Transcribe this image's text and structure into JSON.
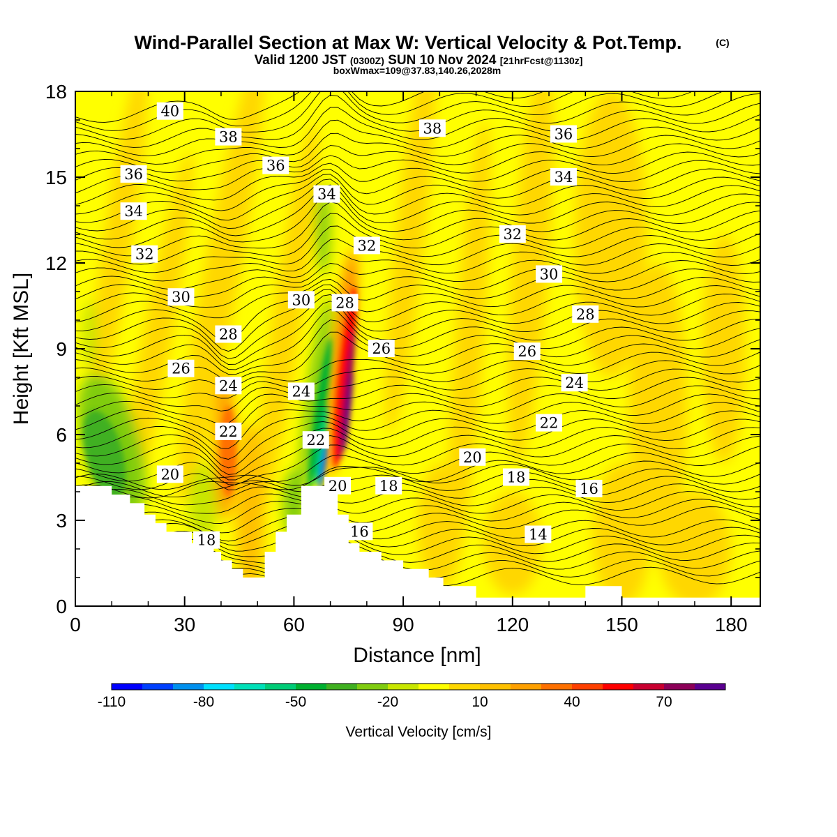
{
  "title": "Wind-Parallel Section at Max W: Vertical Velocity & Pot.Temp.",
  "copyright": "(C)",
  "valid_prefix": "Valid 1200 JST",
  "valid_z": "(0300Z)",
  "valid_date": "SUN 10 Nov 2024",
  "valid_fcst": "[21hrFcst@1130z]",
  "box_info": "boxWmax=109@37.83,140.26,2028m",
  "colorbar": {
    "label": "Vertical Velocity [cm/s]",
    "colors": [
      "#0000ff",
      "#0040ff",
      "#0090ee",
      "#00e0ff",
      "#00e0b8",
      "#00cc77",
      "#00b030",
      "#40b020",
      "#80cc10",
      "#c8e600",
      "#ffff00",
      "#ffd700",
      "#ffc000",
      "#ffa000",
      "#ff7000",
      "#ff4000",
      "#ff0000",
      "#c80030",
      "#8c0058",
      "#5a0090"
    ],
    "tick_labels": [
      "-110",
      "-80",
      "-50",
      "-20",
      "10",
      "40",
      "70"
    ]
  },
  "chart_data": {
    "type": "heatmap",
    "title": "Wind-Parallel Section at Max W: Vertical Velocity & Pot.Temp.",
    "xlabel": "Distance [nm]",
    "ylabel": "Height [Kft MSL]",
    "xlim": [
      0,
      188
    ],
    "ylim": [
      0,
      18
    ],
    "xticks": [
      "0",
      "30",
      "60",
      "90",
      "120",
      "150",
      "180"
    ],
    "yticks": [
      "0",
      "3",
      "6",
      "9",
      "12",
      "15",
      "18"
    ],
    "shaded_field": "Vertical Velocity [cm/s]",
    "contour_field": "Potential temperature",
    "contour_labels": [
      {
        "t": "40",
        "x": 26,
        "y": 17.3
      },
      {
        "t": "38",
        "x": 42,
        "y": 16.4
      },
      {
        "t": "38",
        "x": 98,
        "y": 16.7
      },
      {
        "t": "36",
        "x": 16,
        "y": 15.1
      },
      {
        "t": "36",
        "x": 55,
        "y": 15.4
      },
      {
        "t": "36",
        "x": 134,
        "y": 16.5
      },
      {
        "t": "34",
        "x": 16,
        "y": 13.8
      },
      {
        "t": "34",
        "x": 69,
        "y": 14.4
      },
      {
        "t": "34",
        "x": 134,
        "y": 15.0
      },
      {
        "t": "32",
        "x": 19,
        "y": 12.3
      },
      {
        "t": "32",
        "x": 80,
        "y": 12.6
      },
      {
        "t": "32",
        "x": 120,
        "y": 13.0
      },
      {
        "t": "30",
        "x": 29,
        "y": 10.8
      },
      {
        "t": "30",
        "x": 62,
        "y": 10.7
      },
      {
        "t": "30",
        "x": 130,
        "y": 11.6
      },
      {
        "t": "28",
        "x": 42,
        "y": 9.5
      },
      {
        "t": "28",
        "x": 74,
        "y": 10.6
      },
      {
        "t": "28",
        "x": 140,
        "y": 10.2
      },
      {
        "t": "26",
        "x": 29,
        "y": 8.3
      },
      {
        "t": "26",
        "x": 84,
        "y": 9.0
      },
      {
        "t": "26",
        "x": 124,
        "y": 8.9
      },
      {
        "t": "24",
        "x": 42,
        "y": 7.7
      },
      {
        "t": "24",
        "x": 62,
        "y": 7.5
      },
      {
        "t": "24",
        "x": 137,
        "y": 7.8
      },
      {
        "t": "22",
        "x": 42,
        "y": 6.1
      },
      {
        "t": "22",
        "x": 66,
        "y": 5.8
      },
      {
        "t": "22",
        "x": 130,
        "y": 6.4
      },
      {
        "t": "20",
        "x": 26,
        "y": 4.6
      },
      {
        "t": "20",
        "x": 72,
        "y": 4.2
      },
      {
        "t": "20",
        "x": 109,
        "y": 5.2
      },
      {
        "t": "18",
        "x": 36,
        "y": 2.3
      },
      {
        "t": "18",
        "x": 86,
        "y": 4.2
      },
      {
        "t": "18",
        "x": 121,
        "y": 4.5
      },
      {
        "t": "16",
        "x": 78,
        "y": 2.6
      },
      {
        "t": "16",
        "x": 141,
        "y": 4.1
      },
      {
        "t": "14",
        "x": 127,
        "y": 2.5
      }
    ],
    "terrain_profile": [
      [
        0,
        4.2
      ],
      [
        10,
        4.2
      ],
      [
        10,
        3.9
      ],
      [
        15,
        3.9
      ],
      [
        15,
        3.6
      ],
      [
        19,
        3.6
      ],
      [
        19,
        3.2
      ],
      [
        22,
        3.2
      ],
      [
        22,
        2.9
      ],
      [
        25,
        2.9
      ],
      [
        25,
        2.6
      ],
      [
        32,
        2.6
      ],
      [
        32,
        2.2
      ],
      [
        38,
        2.2
      ],
      [
        38,
        1.9
      ],
      [
        40,
        1.9
      ],
      [
        40,
        1.6
      ],
      [
        43,
        1.6
      ],
      [
        43,
        1.3
      ],
      [
        46,
        1.3
      ],
      [
        46,
        1.0
      ],
      [
        52,
        1.0
      ],
      [
        52,
        1.9
      ],
      [
        55,
        1.9
      ],
      [
        55,
        2.6
      ],
      [
        58,
        2.6
      ],
      [
        58,
        3.2
      ],
      [
        62,
        3.2
      ],
      [
        62,
        4.2
      ],
      [
        72,
        4.2
      ],
      [
        72,
        3.2
      ],
      [
        75,
        3.2
      ],
      [
        75,
        2.2
      ],
      [
        78,
        2.2
      ],
      [
        78,
        1.9
      ],
      [
        84,
        1.9
      ],
      [
        84,
        1.6
      ],
      [
        90,
        1.6
      ],
      [
        90,
        1.3
      ],
      [
        97,
        1.3
      ],
      [
        97,
        1.0
      ],
      [
        101,
        1.0
      ],
      [
        101,
        0.7
      ],
      [
        110,
        0.7
      ],
      [
        110,
        0.3
      ],
      [
        140,
        0.3
      ],
      [
        140,
        0.7
      ],
      [
        150,
        0.7
      ],
      [
        150,
        0.3
      ],
      [
        188,
        0.3
      ]
    ]
  }
}
